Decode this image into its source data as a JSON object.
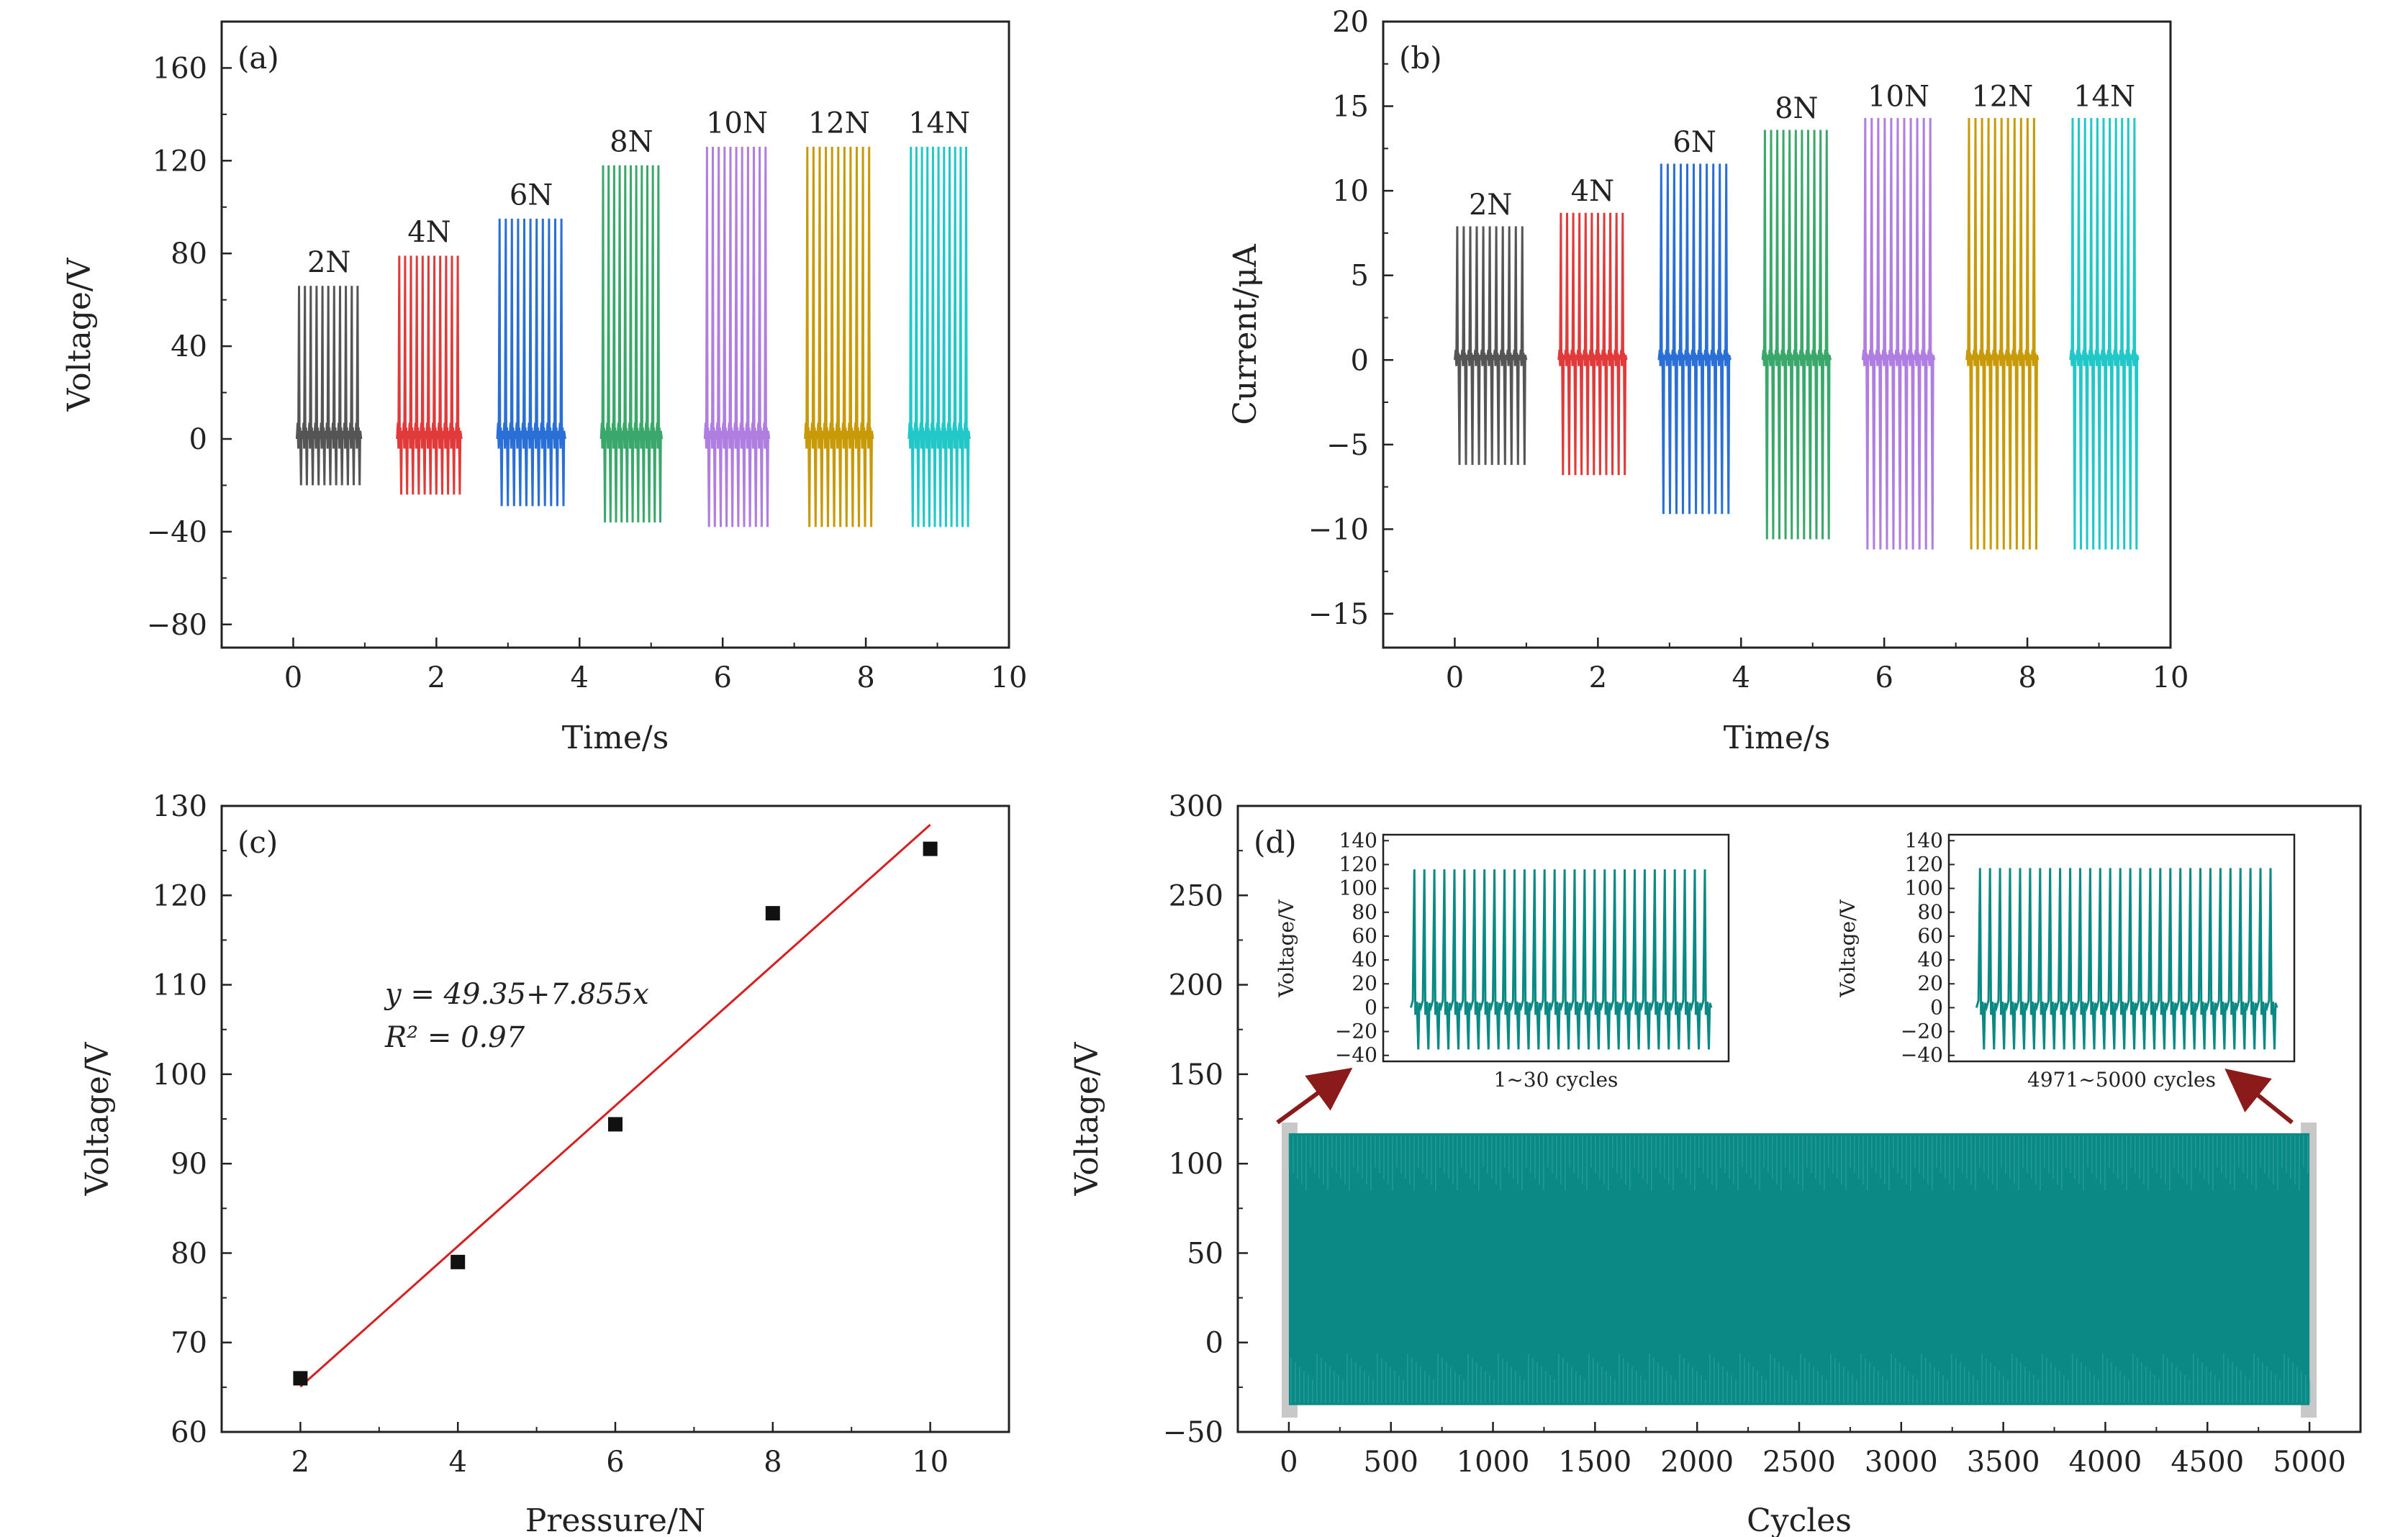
{
  "chart_data": [
    {
      "id": "a",
      "panel_label": "(a)",
      "type": "line",
      "xlabel": "Time/s",
      "ylabel": "Voltage/V",
      "xlim": [
        -1,
        10
      ],
      "ylim": [
        -90,
        180
      ],
      "xticks": [
        0,
        2,
        4,
        6,
        8,
        10
      ],
      "yticks": [
        -80,
        -40,
        0,
        40,
        80,
        120,
        160
      ],
      "ytick_labels": [
        "−80",
        "−40",
        "0",
        "40",
        "80",
        "120",
        "160"
      ],
      "series": [
        {
          "name": "2N",
          "color": "#555555",
          "t_start": 0.05,
          "t_end": 0.95,
          "peak": 66,
          "trough": -20,
          "label_y": 72
        },
        {
          "name": "4N",
          "color": "#e03a3a",
          "t_start": 1.45,
          "t_end": 2.35,
          "peak": 79,
          "trough": -24,
          "label_y": 85
        },
        {
          "name": "6N",
          "color": "#2a6fd6",
          "t_start": 2.85,
          "t_end": 3.8,
          "peak": 95,
          "trough": -29,
          "label_y": 101
        },
        {
          "name": "8N",
          "color": "#3aa86b",
          "t_start": 4.3,
          "t_end": 5.15,
          "peak": 118,
          "trough": -36,
          "label_y": 124
        },
        {
          "name": "10N",
          "color": "#b07ee0",
          "t_start": 5.75,
          "t_end": 6.65,
          "peak": 126,
          "trough": -38,
          "label_y": 132
        },
        {
          "name": "12N",
          "color": "#c99a08",
          "t_start": 7.15,
          "t_end": 8.1,
          "peak": 126,
          "trough": -38,
          "label_y": 132
        },
        {
          "name": "14N",
          "color": "#22c8c8",
          "t_start": 8.6,
          "t_end": 9.45,
          "peak": 126,
          "trough": -38,
          "label_y": 132
        }
      ]
    },
    {
      "id": "b",
      "panel_label": "(b)",
      "type": "line",
      "xlabel": "Time/s",
      "ylabel": "Current/μA",
      "xlim": [
        -1,
        10
      ],
      "ylim": [
        -17,
        20
      ],
      "xticks": [
        0,
        2,
        4,
        6,
        8,
        10
      ],
      "yticks": [
        -15,
        -10,
        -5,
        0,
        5,
        10,
        15,
        20
      ],
      "ytick_labels": [
        "−15",
        "−10",
        "−5",
        "0",
        "5",
        "10",
        "15",
        "20"
      ],
      "series": [
        {
          "name": "2N",
          "color": "#555555",
          "t_start": 0.0,
          "t_end": 1.0,
          "peak": 7.9,
          "trough": -6.2,
          "label_y": 8.6
        },
        {
          "name": "4N",
          "color": "#e03a3a",
          "t_start": 1.45,
          "t_end": 2.4,
          "peak": 8.7,
          "trough": -6.8,
          "label_y": 9.4
        },
        {
          "name": "6N",
          "color": "#2a6fd6",
          "t_start": 2.85,
          "t_end": 3.85,
          "peak": 11.6,
          "trough": -9.1,
          "label_y": 12.3
        },
        {
          "name": "8N",
          "color": "#3aa86b",
          "t_start": 4.3,
          "t_end": 5.25,
          "peak": 13.6,
          "trough": -10.6,
          "label_y": 14.3
        },
        {
          "name": "10N",
          "color": "#b07ee0",
          "t_start": 5.7,
          "t_end": 6.7,
          "peak": 14.3,
          "trough": -11.2,
          "label_y": 15.0
        },
        {
          "name": "12N",
          "color": "#c99a08",
          "t_start": 7.15,
          "t_end": 8.15,
          "peak": 14.3,
          "trough": -11.2,
          "label_y": 15.0
        },
        {
          "name": "14N",
          "color": "#22c8c8",
          "t_start": 8.6,
          "t_end": 9.55,
          "peak": 14.3,
          "trough": -11.2,
          "label_y": 15.0
        }
      ]
    },
    {
      "id": "c",
      "panel_label": "(c)",
      "type": "scatter",
      "xlabel": "Pressure/N",
      "ylabel": "Voltage/V",
      "xlim": [
        1,
        11
      ],
      "ylim": [
        60,
        130
      ],
      "xticks": [
        2,
        4,
        6,
        8,
        10
      ],
      "yticks": [
        60,
        70,
        80,
        90,
        100,
        110,
        120,
        130
      ],
      "x": [
        2,
        4,
        6,
        8,
        10
      ],
      "y": [
        66,
        79,
        94.4,
        118,
        125.2
      ],
      "fit": {
        "intercept": 49.35,
        "slope": 7.855,
        "x_range": [
          2,
          10
        ],
        "color": "#d62020"
      },
      "equation_text": "y = 49.35+7.855x",
      "r2_text": "R² = 0.97"
    },
    {
      "id": "d",
      "panel_label": "(d)",
      "type": "line",
      "xlabel": "Cycles",
      "ylabel": "Voltage/V",
      "xlim": [
        -250,
        5250
      ],
      "ylim": [
        -50,
        300
      ],
      "xticks": [
        0,
        500,
        1000,
        1500,
        2000,
        2500,
        3000,
        3500,
        4000,
        4500,
        5000
      ],
      "yticks": [
        -50,
        0,
        50,
        100,
        150,
        200,
        250,
        300
      ],
      "ytick_labels": [
        "−50",
        "0",
        "50",
        "100",
        "150",
        "200",
        "250",
        "300"
      ],
      "series": [
        {
          "name": "",
          "color": "#0b8a85",
          "x_range": [
            0,
            5000
          ],
          "peak": 117,
          "trough": -35
        }
      ],
      "insets": [
        {
          "xlabel": "1~30 cycles",
          "ylabel": "Voltage/V",
          "yticks": [
            -40,
            -20,
            0,
            20,
            40,
            60,
            80,
            100,
            120,
            140
          ],
          "ylim": [
            -45,
            145
          ],
          "peak": 116,
          "trough": -35
        },
        {
          "xlabel": "4971~5000 cycles",
          "ylabel": "Voltage/V",
          "yticks": [
            -40,
            -20,
            0,
            20,
            40,
            60,
            80,
            100,
            120,
            140
          ],
          "ylim": [
            -45,
            145
          ],
          "peak": 117,
          "trough": -35
        }
      ]
    }
  ]
}
